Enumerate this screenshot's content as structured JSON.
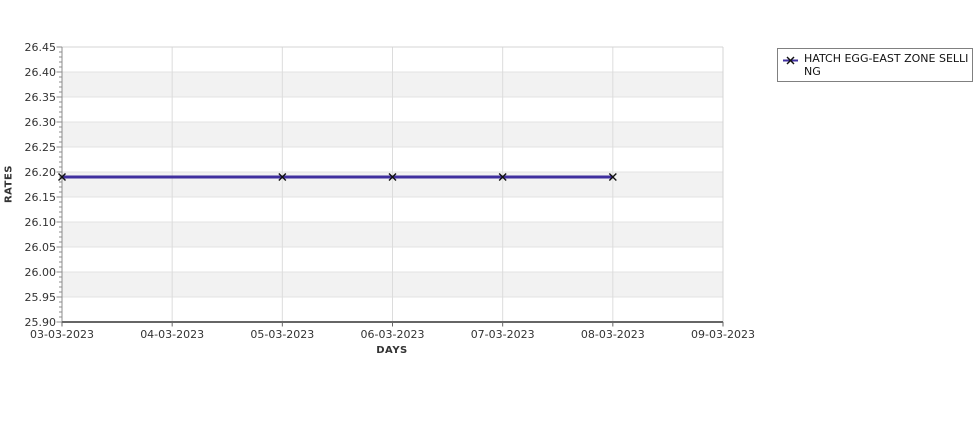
{
  "chart_data": {
    "type": "line",
    "title": "",
    "xlabel": "DAYS",
    "ylabel": "RATES",
    "x_categories": [
      "03-03-2023",
      "04-03-2023",
      "05-03-2023",
      "06-03-2023",
      "07-03-2023",
      "08-03-2023",
      "09-03-2023"
    ],
    "y_tick_labels": [
      "26.45",
      "26.40",
      "26.35",
      "26.30",
      "26.25",
      "26.20",
      "26.15",
      "26.10",
      "26.05",
      "26.00",
      "25.95",
      "25.90"
    ],
    "ylim": [
      25.9,
      26.45
    ],
    "y_major_step": 0.05,
    "y_minor_step": 0.01,
    "grid": true,
    "legend_position": "right",
    "colors": {
      "band_light": "#ffffff",
      "band_dark": "#f2f2f2",
      "h_gridline": "#e3e3e3",
      "v_gridline": "#dcdcdc",
      "plot_border": "#d4d4d4",
      "y_axis": "#8c8c8c",
      "x_axis": "#666666",
      "tick_text": "#333333"
    },
    "series": [
      {
        "name": "HATCH EGG-EAST ZONE SELLING",
        "marker": "x",
        "marker_color": "#111111",
        "line_color": "#3f2f9e",
        "points": [
          {
            "x": "03-03-2023",
            "y": 26.19
          },
          {
            "x": "05-03-2023",
            "y": 26.19
          },
          {
            "x": "06-03-2023",
            "y": 26.19
          },
          {
            "x": "07-03-2023",
            "y": 26.19
          },
          {
            "x": "08-03-2023",
            "y": 26.19
          }
        ]
      }
    ]
  }
}
